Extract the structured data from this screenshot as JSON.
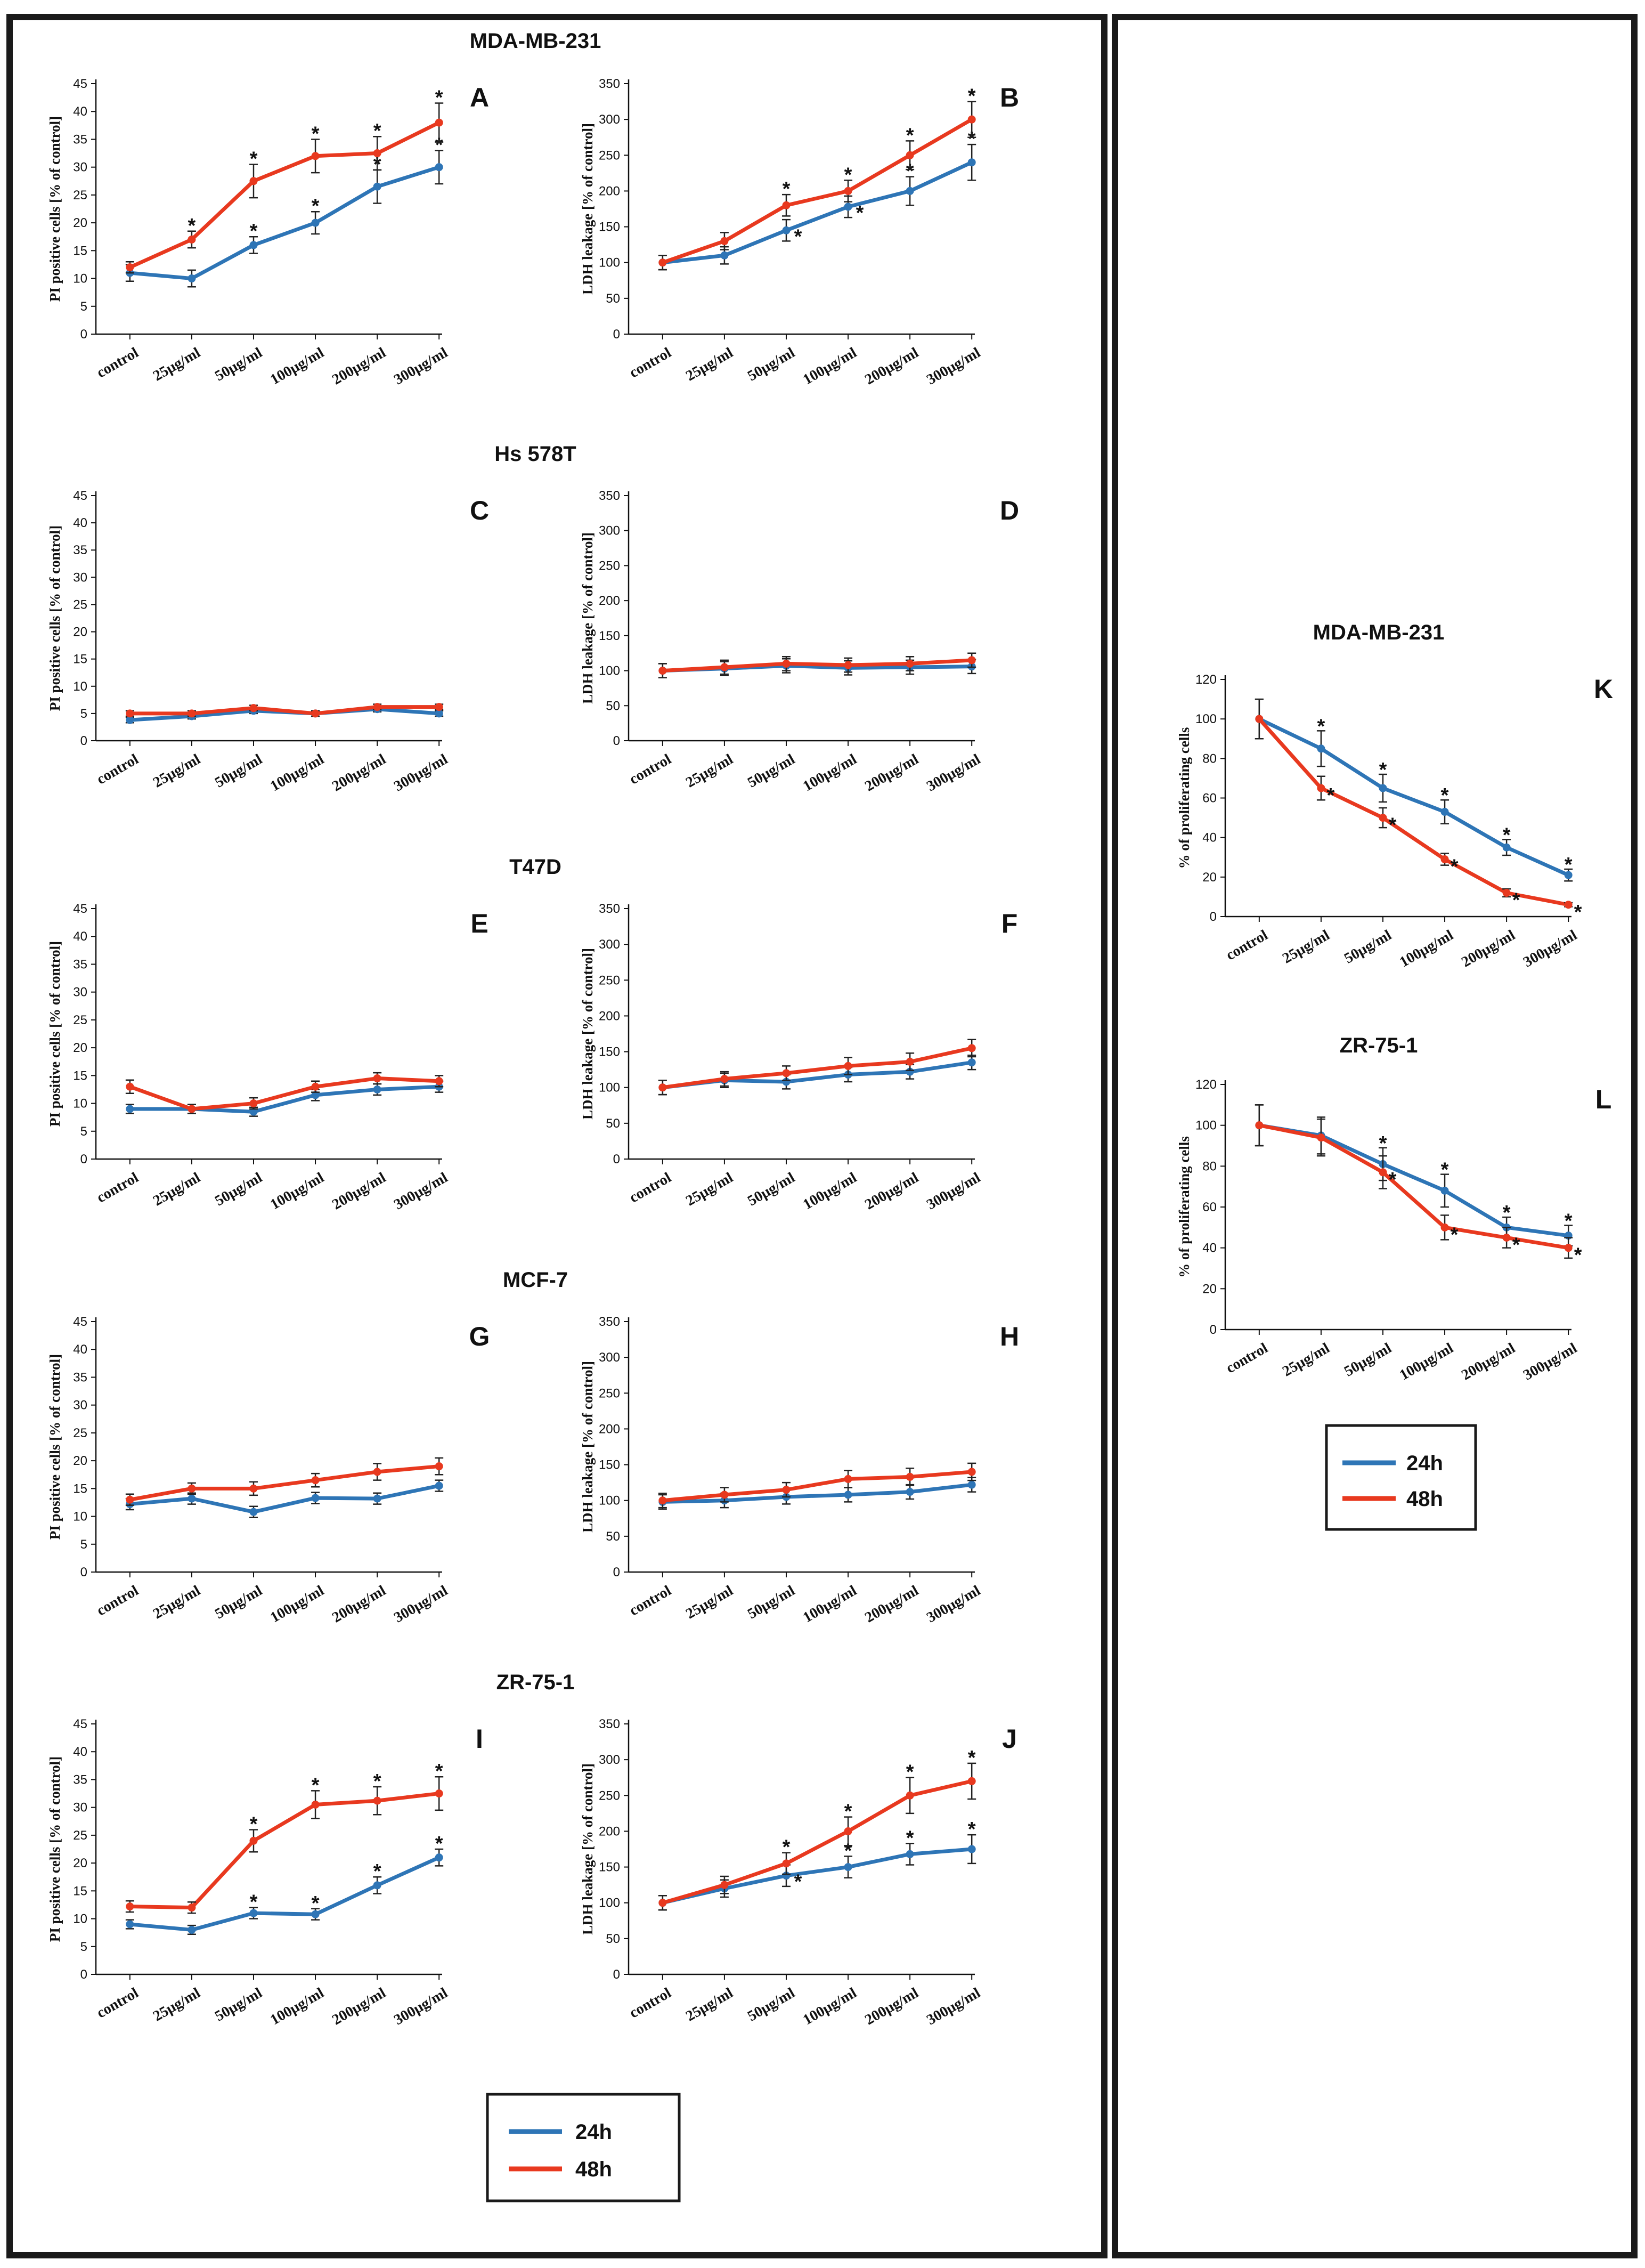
{
  "groups": [
    "MDA-MB-231",
    "Hs 578T",
    "T47D",
    "MCF-7",
    "ZR-75-1",
    "MDA-MB-231",
    "ZR-75-1"
  ],
  "legend": {
    "label_24h": "24h",
    "label_48h": "48h",
    "color_24h": "#2e75b6",
    "color_48h": "#e8391f"
  },
  "chart_data": [
    {
      "id": "A",
      "panel": "A",
      "type": "line",
      "categories": [
        "control",
        "25μg/ml",
        "50μg/ml",
        "100μg/ml",
        "200μg/ml",
        "300μg/ml"
      ],
      "ylabel": "PI positive cells [% of control]",
      "ylim": [
        0,
        45
      ],
      "yticks": [
        0,
        5,
        10,
        15,
        20,
        25,
        30,
        35,
        40,
        45
      ],
      "series": [
        {
          "name": "24h",
          "values": [
            11,
            10,
            16,
            20,
            26.5,
            30
          ],
          "errors": [
            1.5,
            1.5,
            1.5,
            2,
            3,
            3
          ],
          "stars": [
            false,
            false,
            true,
            true,
            true,
            true
          ]
        },
        {
          "name": "48h",
          "values": [
            12,
            17,
            27.5,
            32,
            32.5,
            38
          ],
          "errors": [
            1,
            1.5,
            3,
            3,
            3,
            3.5
          ],
          "stars": [
            false,
            true,
            true,
            true,
            true,
            true
          ]
        }
      ]
    },
    {
      "id": "B",
      "panel": "B",
      "type": "line",
      "categories": [
        "control",
        "25μg/ml",
        "50μg/ml",
        "100μg/ml",
        "200μg/ml",
        "300μg/ml"
      ],
      "ylabel": "LDH leakage [% of control]",
      "ylim": [
        0,
        350
      ],
      "yticks": [
        0,
        50,
        100,
        150,
        200,
        250,
        300,
        350
      ],
      "series": [
        {
          "name": "24h",
          "values": [
            100,
            110,
            145,
            178,
            200,
            240
          ],
          "errors": [
            10,
            12,
            15,
            15,
            20,
            25
          ],
          "stars": [
            false,
            false,
            true,
            true,
            true,
            true
          ]
        },
        {
          "name": "48h",
          "values": [
            100,
            130,
            180,
            200,
            250,
            300
          ],
          "errors": [
            10,
            12,
            15,
            15,
            20,
            25
          ],
          "stars": [
            false,
            false,
            true,
            true,
            true,
            true
          ]
        }
      ]
    },
    {
      "id": "C",
      "panel": "C",
      "type": "line",
      "categories": [
        "control",
        "25μg/ml",
        "50μg/ml",
        "100μg/ml",
        "200μg/ml",
        "300μg/ml"
      ],
      "ylabel": "PI positive cells [% of control]",
      "ylim": [
        0,
        45
      ],
      "yticks": [
        0,
        5,
        10,
        15,
        20,
        25,
        30,
        35,
        40,
        45
      ],
      "series": [
        {
          "name": "24h",
          "values": [
            3.8,
            4.5,
            5.5,
            5,
            5.8,
            5
          ],
          "errors": [
            0.5,
            0.5,
            0.5,
            0.5,
            0.5,
            0.5
          ],
          "stars": [
            false,
            false,
            false,
            false,
            false,
            false
          ]
        },
        {
          "name": "48h",
          "values": [
            5,
            5,
            6,
            5,
            6.2,
            6.2
          ],
          "errors": [
            0.5,
            0.5,
            0.5,
            0.5,
            0.5,
            0.5
          ],
          "stars": [
            false,
            false,
            false,
            false,
            false,
            false
          ]
        }
      ]
    },
    {
      "id": "D",
      "panel": "D",
      "type": "line",
      "categories": [
        "control",
        "25μg/ml",
        "50μg/ml",
        "100μg/ml",
        "200μg/ml",
        "300μg/ml"
      ],
      "ylabel": "LDH leakage [% of control]",
      "ylim": [
        0,
        350
      ],
      "yticks": [
        0,
        50,
        100,
        150,
        200,
        250,
        300,
        350
      ],
      "series": [
        {
          "name": "24h",
          "values": [
            100,
            103,
            107,
            104,
            105,
            106
          ],
          "errors": [
            10,
            10,
            10,
            10,
            10,
            10
          ],
          "stars": [
            false,
            false,
            false,
            false,
            false,
            false
          ]
        },
        {
          "name": "48h",
          "values": [
            100,
            105,
            110,
            108,
            110,
            115
          ],
          "errors": [
            10,
            10,
            10,
            10,
            10,
            10
          ],
          "stars": [
            false,
            false,
            false,
            false,
            false,
            false
          ]
        }
      ]
    },
    {
      "id": "E",
      "panel": "E",
      "type": "line",
      "categories": [
        "control",
        "25μg/ml",
        "50μg/ml",
        "100μg/ml",
        "200μg/ml",
        "300μg/ml"
      ],
      "ylabel": "PI positive cells [% of control]",
      "ylim": [
        0,
        45
      ],
      "yticks": [
        0,
        5,
        10,
        15,
        20,
        25,
        30,
        35,
        40,
        45
      ],
      "series": [
        {
          "name": "24h",
          "values": [
            9,
            9,
            8.5,
            11.5,
            12.5,
            13
          ],
          "errors": [
            0.8,
            0.8,
            0.8,
            1,
            1,
            1
          ],
          "stars": [
            false,
            false,
            false,
            false,
            false,
            false
          ]
        },
        {
          "name": "48h",
          "values": [
            13,
            9,
            10,
            13,
            14.5,
            14
          ],
          "errors": [
            1.2,
            0.8,
            1,
            1,
            1,
            1
          ],
          "stars": [
            false,
            false,
            false,
            false,
            false,
            false
          ]
        }
      ]
    },
    {
      "id": "F",
      "panel": "F",
      "type": "line",
      "categories": [
        "control",
        "25μg/ml",
        "50μg/ml",
        "100μg/ml",
        "200μg/ml",
        "300μg/ml"
      ],
      "ylabel": "LDH leakage [% of control]",
      "ylim": [
        0,
        350
      ],
      "yticks": [
        0,
        50,
        100,
        150,
        200,
        250,
        300,
        350
      ],
      "series": [
        {
          "name": "24h",
          "values": [
            100,
            110,
            108,
            118,
            122,
            135
          ],
          "errors": [
            10,
            10,
            10,
            10,
            10,
            10
          ],
          "stars": [
            false,
            false,
            false,
            false,
            false,
            false
          ]
        },
        {
          "name": "48h",
          "values": [
            100,
            112,
            120,
            130,
            136,
            155
          ],
          "errors": [
            10,
            10,
            10,
            12,
            12,
            12
          ],
          "stars": [
            false,
            false,
            false,
            false,
            false,
            false
          ]
        }
      ]
    },
    {
      "id": "G",
      "panel": "G",
      "type": "line",
      "categories": [
        "control",
        "25μg/ml",
        "50μg/ml",
        "100μg/ml",
        "200μg/ml",
        "300μg/ml"
      ],
      "ylabel": "PI positive cells [% of control]",
      "ylim": [
        0,
        45
      ],
      "yticks": [
        0,
        5,
        10,
        15,
        20,
        25,
        30,
        35,
        40,
        45
      ],
      "series": [
        {
          "name": "24h",
          "values": [
            12.2,
            13.2,
            10.8,
            13.3,
            13.2,
            15.5
          ],
          "errors": [
            1,
            1,
            1,
            1,
            1,
            1
          ],
          "stars": [
            false,
            false,
            false,
            false,
            false,
            false
          ]
        },
        {
          "name": "48h",
          "values": [
            13,
            15,
            15,
            16.5,
            18,
            19
          ],
          "errors": [
            1,
            1,
            1.2,
            1.2,
            1.5,
            1.5
          ],
          "stars": [
            false,
            false,
            false,
            false,
            false,
            false
          ]
        }
      ]
    },
    {
      "id": "H",
      "panel": "H",
      "type": "line",
      "categories": [
        "control",
        "25μg/ml",
        "50μg/ml",
        "100μg/ml",
        "200μg/ml",
        "300μg/ml"
      ],
      "ylabel": "LDH leakage [% of control]",
      "ylim": [
        0,
        350
      ],
      "yticks": [
        0,
        50,
        100,
        150,
        200,
        250,
        300,
        350
      ],
      "series": [
        {
          "name": "24h",
          "values": [
            98,
            100,
            105,
            108,
            112,
            122
          ],
          "errors": [
            10,
            10,
            10,
            10,
            10,
            10
          ],
          "stars": [
            false,
            false,
            false,
            false,
            false,
            false
          ]
        },
        {
          "name": "48h",
          "values": [
            100,
            108,
            115,
            130,
            133,
            140
          ],
          "errors": [
            10,
            10,
            10,
            12,
            12,
            12
          ],
          "stars": [
            false,
            false,
            false,
            false,
            false,
            false
          ]
        }
      ]
    },
    {
      "id": "I",
      "panel": "I",
      "type": "line",
      "categories": [
        "control",
        "25μg/ml",
        "50μg/ml",
        "100μg/ml",
        "200μg/ml",
        "300μg/ml"
      ],
      "ylabel": "PI positive cells [% of control]",
      "ylim": [
        0,
        45
      ],
      "yticks": [
        0,
        5,
        10,
        15,
        20,
        25,
        30,
        35,
        40,
        45
      ],
      "series": [
        {
          "name": "24h",
          "values": [
            9,
            8,
            11,
            10.8,
            16,
            21
          ],
          "errors": [
            0.8,
            0.8,
            1,
            1,
            1.5,
            1.5
          ],
          "stars": [
            false,
            false,
            true,
            true,
            true,
            true
          ]
        },
        {
          "name": "48h",
          "values": [
            12.2,
            12,
            24,
            30.5,
            31.2,
            32.5
          ],
          "errors": [
            1,
            1,
            2,
            2.5,
            2.5,
            3
          ],
          "stars": [
            false,
            false,
            true,
            true,
            true,
            true
          ]
        }
      ]
    },
    {
      "id": "J",
      "panel": "J",
      "type": "line",
      "categories": [
        "control",
        "25μg/ml",
        "50μg/ml",
        "100μg/ml",
        "200μg/ml",
        "300μg/ml"
      ],
      "ylabel": "LDH leakage [% of control]",
      "ylim": [
        0,
        350
      ],
      "yticks": [
        0,
        50,
        100,
        150,
        200,
        250,
        300,
        350
      ],
      "series": [
        {
          "name": "24h",
          "values": [
            100,
            120,
            138,
            150,
            168,
            175
          ],
          "errors": [
            10,
            12,
            15,
            15,
            15,
            20
          ],
          "stars": [
            false,
            false,
            true,
            true,
            true,
            true
          ]
        },
        {
          "name": "48h",
          "values": [
            100,
            125,
            155,
            200,
            250,
            270
          ],
          "errors": [
            10,
            12,
            15,
            20,
            25,
            25
          ],
          "stars": [
            false,
            false,
            true,
            true,
            true,
            true
          ]
        }
      ]
    },
    {
      "id": "K",
      "panel": "K",
      "type": "line",
      "categories": [
        "control",
        "25μg/ml",
        "50μg/ml",
        "100μg/ml",
        "200μg/ml",
        "300μg/ml"
      ],
      "ylabel": "% of proliferating cells",
      "ylim": [
        0,
        120
      ],
      "yticks": [
        0,
        20,
        40,
        60,
        80,
        100,
        120
      ],
      "series": [
        {
          "name": "24h",
          "values": [
            100,
            85,
            65,
            53,
            35,
            21
          ],
          "errors": [
            10,
            9,
            7,
            6,
            4,
            3
          ],
          "stars": [
            false,
            true,
            true,
            true,
            true,
            true
          ]
        },
        {
          "name": "48h",
          "values": [
            100,
            65,
            50,
            29,
            12,
            6
          ],
          "errors": [
            10,
            6,
            5,
            3,
            2,
            1
          ],
          "stars": [
            false,
            true,
            true,
            true,
            true,
            true
          ]
        }
      ]
    },
    {
      "id": "L",
      "panel": "L",
      "type": "line",
      "categories": [
        "control",
        "25μg/ml",
        "50μg/ml",
        "100μg/ml",
        "200μg/ml",
        "300μg/ml"
      ],
      "ylabel": "% of proliferating cells",
      "ylim": [
        0,
        120
      ],
      "yticks": [
        0,
        20,
        40,
        60,
        80,
        100,
        120
      ],
      "series": [
        {
          "name": "24h",
          "values": [
            100,
            95,
            81,
            68,
            50,
            46
          ],
          "errors": [
            10,
            9,
            8,
            8,
            5,
            5
          ],
          "stars": [
            false,
            false,
            true,
            true,
            true,
            true
          ]
        },
        {
          "name": "48h",
          "values": [
            100,
            94,
            77,
            50,
            45,
            40
          ],
          "errors": [
            10,
            9,
            8,
            6,
            5,
            5
          ],
          "stars": [
            false,
            false,
            true,
            true,
            true,
            true
          ]
        }
      ]
    }
  ]
}
